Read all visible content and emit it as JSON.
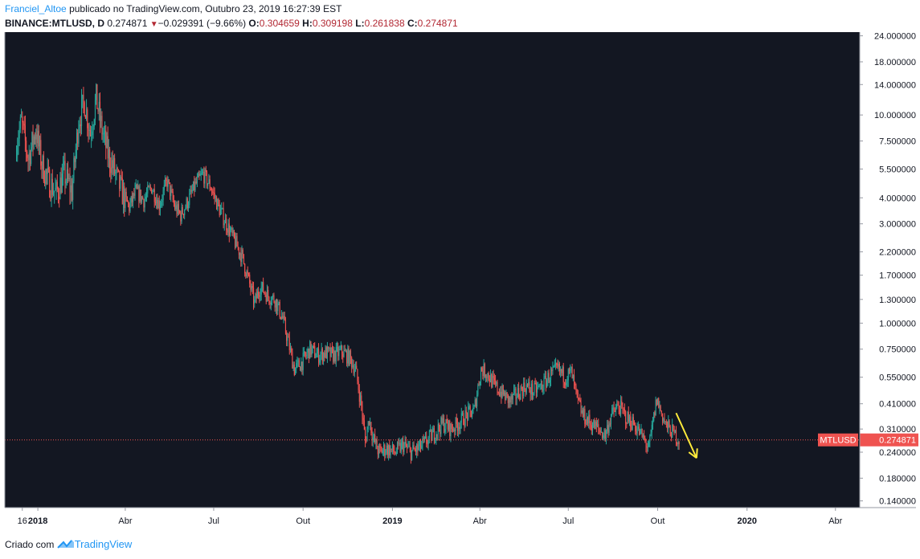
{
  "header": {
    "author": "Franciel_Altoe",
    "published_text": "publicado no TradingView.com, Outubro 23, 2019 16:27:39 EST",
    "symbol": "BINANCE:MTLUSD, D",
    "last_price": "0.274871",
    "change": "−0.029391 (−9.66%)",
    "open_label": "O:",
    "open": "0.304659",
    "high_label": "H:",
    "high": "0.309198",
    "low_label": "L:",
    "low": "0.261838",
    "close_label": "C:",
    "close": "0.274871"
  },
  "footer": {
    "created_with": "Criado com",
    "brand": "TradingView",
    "brand_icon": "tradingview-logo-icon"
  },
  "colors": {
    "background": "#131722",
    "up": "#26a69a",
    "down": "#ef5350",
    "price_line": "#ef5350",
    "arrow": "#ffeb3b"
  },
  "chart_data": {
    "type": "candlestick",
    "title": "BINANCE:MTLUSD, D",
    "y_scale": "log",
    "ylim": [
      0.13,
      25
    ],
    "y_ticks": [
      "24.000000",
      "18.000000",
      "14.000000",
      "10.000000",
      "7.500000",
      "5.500000",
      "4.000000",
      "3.000000",
      "2.200000",
      "1.700000",
      "1.300000",
      "1.000000",
      "0.750000",
      "0.550000",
      "0.410000",
      "0.310000",
      "0.240000",
      "0.180000",
      "0.140000"
    ],
    "x_ticks": [
      {
        "label": "16",
        "date": "2017-12-16",
        "bold": false
      },
      {
        "label": "2018",
        "date": "2018-01-01",
        "bold": true
      },
      {
        "label": "Abr",
        "date": "2018-04-01",
        "bold": false
      },
      {
        "label": "Jul",
        "date": "2018-07-01",
        "bold": false
      },
      {
        "label": "Out",
        "date": "2018-10-01",
        "bold": false
      },
      {
        "label": "2019",
        "date": "2019-01-01",
        "bold": true
      },
      {
        "label": "Abr",
        "date": "2019-04-01",
        "bold": false
      },
      {
        "label": "Jul",
        "date": "2019-07-01",
        "bold": false
      },
      {
        "label": "Out",
        "date": "2019-10-01",
        "bold": false
      },
      {
        "label": "2020",
        "date": "2020-01-01",
        "bold": true
      },
      {
        "label": "Abr",
        "date": "2020-04-01",
        "bold": false
      }
    ],
    "xlim": [
      "2017-11-28",
      "2020-04-26"
    ],
    "price_label": {
      "symbol": "MTLUSD",
      "value": "0.274871",
      "price": 0.274871
    },
    "price_path": [
      [
        "2017-12-10",
        7.5
      ],
      [
        "2017-12-15",
        9.2
      ],
      [
        "2017-12-22",
        6.2
      ],
      [
        "2017-12-30",
        8.5
      ],
      [
        "2018-01-05",
        5.8
      ],
      [
        "2018-01-12",
        4.8
      ],
      [
        "2018-01-20",
        4.2
      ],
      [
        "2018-01-28",
        5.2
      ],
      [
        "2018-02-05",
        4.3
      ],
      [
        "2018-02-12",
        9.5
      ],
      [
        "2018-02-18",
        11.5
      ],
      [
        "2018-02-24",
        8.2
      ],
      [
        "2018-03-02",
        12.0
      ],
      [
        "2018-03-08",
        8.5
      ],
      [
        "2018-03-14",
        6.5
      ],
      [
        "2018-03-20",
        5.5
      ],
      [
        "2018-03-28",
        4.3
      ],
      [
        "2018-04-05",
        3.6
      ],
      [
        "2018-04-12",
        4.3
      ],
      [
        "2018-04-20",
        3.9
      ],
      [
        "2018-04-28",
        4.5
      ],
      [
        "2018-05-06",
        3.7
      ],
      [
        "2018-05-14",
        4.8
      ],
      [
        "2018-05-22",
        3.6
      ],
      [
        "2018-05-28",
        3.3
      ],
      [
        "2018-06-05",
        3.9
      ],
      [
        "2018-06-12",
        4.6
      ],
      [
        "2018-06-20",
        5.2
      ],
      [
        "2018-06-28",
        4.5
      ],
      [
        "2018-07-06",
        3.6
      ],
      [
        "2018-07-14",
        3.0
      ],
      [
        "2018-07-22",
        2.5
      ],
      [
        "2018-07-30",
        2.1
      ],
      [
        "2018-08-06",
        1.6
      ],
      [
        "2018-08-12",
        1.25
      ],
      [
        "2018-08-18",
        1.5
      ],
      [
        "2018-08-26",
        1.35
      ],
      [
        "2018-09-02",
        1.3
      ],
      [
        "2018-09-10",
        1.05
      ],
      [
        "2018-09-16",
        0.8
      ],
      [
        "2018-09-22",
        0.6
      ],
      [
        "2018-09-30",
        0.65
      ],
      [
        "2018-10-08",
        0.75
      ],
      [
        "2018-10-16",
        0.7
      ],
      [
        "2018-10-24",
        0.72
      ],
      [
        "2018-11-01",
        0.7
      ],
      [
        "2018-11-10",
        0.73
      ],
      [
        "2018-11-18",
        0.68
      ],
      [
        "2018-11-24",
        0.6
      ],
      [
        "2018-11-30",
        0.4
      ],
      [
        "2018-12-04",
        0.27
      ],
      [
        "2018-12-08",
        0.35
      ],
      [
        "2018-12-12",
        0.28
      ],
      [
        "2018-12-18",
        0.24
      ],
      [
        "2018-12-26",
        0.25
      ],
      [
        "2019-01-04",
        0.24
      ],
      [
        "2019-01-12",
        0.26
      ],
      [
        "2019-01-20",
        0.24
      ],
      [
        "2019-01-28",
        0.25
      ],
      [
        "2019-02-05",
        0.27
      ],
      [
        "2019-02-14",
        0.3
      ],
      [
        "2019-02-22",
        0.33
      ],
      [
        "2019-03-02",
        0.31
      ],
      [
        "2019-03-10",
        0.33
      ],
      [
        "2019-03-18",
        0.36
      ],
      [
        "2019-03-26",
        0.38
      ],
      [
        "2019-04-02",
        0.6
      ],
      [
        "2019-04-08",
        0.58
      ],
      [
        "2019-04-16",
        0.5
      ],
      [
        "2019-04-24",
        0.46
      ],
      [
        "2019-05-02",
        0.42
      ],
      [
        "2019-05-10",
        0.46
      ],
      [
        "2019-05-18",
        0.5
      ],
      [
        "2019-05-26",
        0.47
      ],
      [
        "2019-06-04",
        0.5
      ],
      [
        "2019-06-12",
        0.56
      ],
      [
        "2019-06-20",
        0.6
      ],
      [
        "2019-06-28",
        0.55
      ],
      [
        "2019-07-04",
        0.58
      ],
      [
        "2019-07-10",
        0.43
      ],
      [
        "2019-07-16",
        0.36
      ],
      [
        "2019-07-24",
        0.33
      ],
      [
        "2019-08-01",
        0.31
      ],
      [
        "2019-08-08",
        0.29
      ],
      [
        "2019-08-14",
        0.36
      ],
      [
        "2019-08-22",
        0.4
      ],
      [
        "2019-08-30",
        0.35
      ],
      [
        "2019-09-06",
        0.33
      ],
      [
        "2019-09-12",
        0.3
      ],
      [
        "2019-09-18",
        0.27
      ],
      [
        "2019-09-22",
        0.25
      ],
      [
        "2019-09-26",
        0.33
      ],
      [
        "2019-09-30",
        0.43
      ],
      [
        "2019-10-04",
        0.38
      ],
      [
        "2019-10-10",
        0.32
      ],
      [
        "2019-10-16",
        0.3
      ],
      [
        "2019-10-23",
        0.2748
      ]
    ],
    "arrow": {
      "from": [
        "2019-10-20",
        0.37
      ],
      "to": [
        "2019-11-10",
        0.225
      ]
    }
  }
}
